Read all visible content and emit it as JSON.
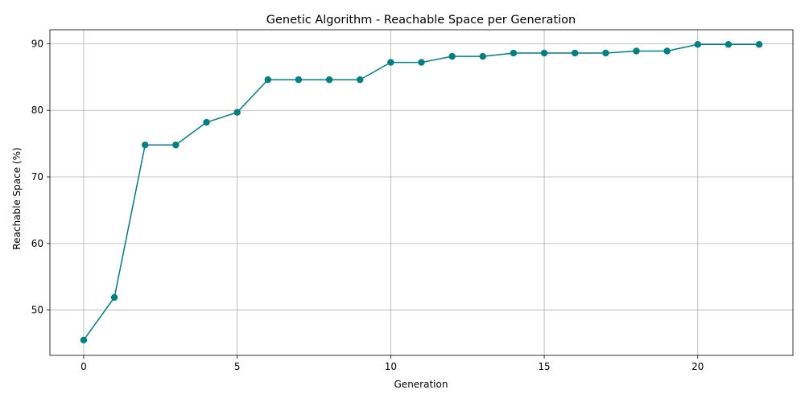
{
  "chart_data": {
    "type": "line",
    "title": "Genetic Algorithm - Reachable Space per Generation",
    "xlabel": "Generation",
    "ylabel": "Reachable Space (%)",
    "xlim": [
      -1.1,
      23.1
    ],
    "ylim": [
      43.2,
      92.1
    ],
    "xticks": [
      0,
      5,
      10,
      15,
      20
    ],
    "yticks": [
      50,
      60,
      70,
      80,
      90
    ],
    "grid": true,
    "marker": "circle",
    "color": "#008080",
    "series": [
      {
        "x": [
          0,
          1,
          2,
          3,
          4,
          5,
          6,
          7,
          8,
          9,
          10,
          11,
          12,
          13,
          14,
          15,
          16,
          17,
          18,
          19,
          20,
          21,
          22
        ],
        "values": [
          45.5,
          51.9,
          74.8,
          74.8,
          78.2,
          79.7,
          84.6,
          84.6,
          84.6,
          84.6,
          87.2,
          87.2,
          88.1,
          88.1,
          88.6,
          88.6,
          88.6,
          88.6,
          88.9,
          88.9,
          89.9,
          89.9,
          89.9
        ]
      }
    ]
  }
}
